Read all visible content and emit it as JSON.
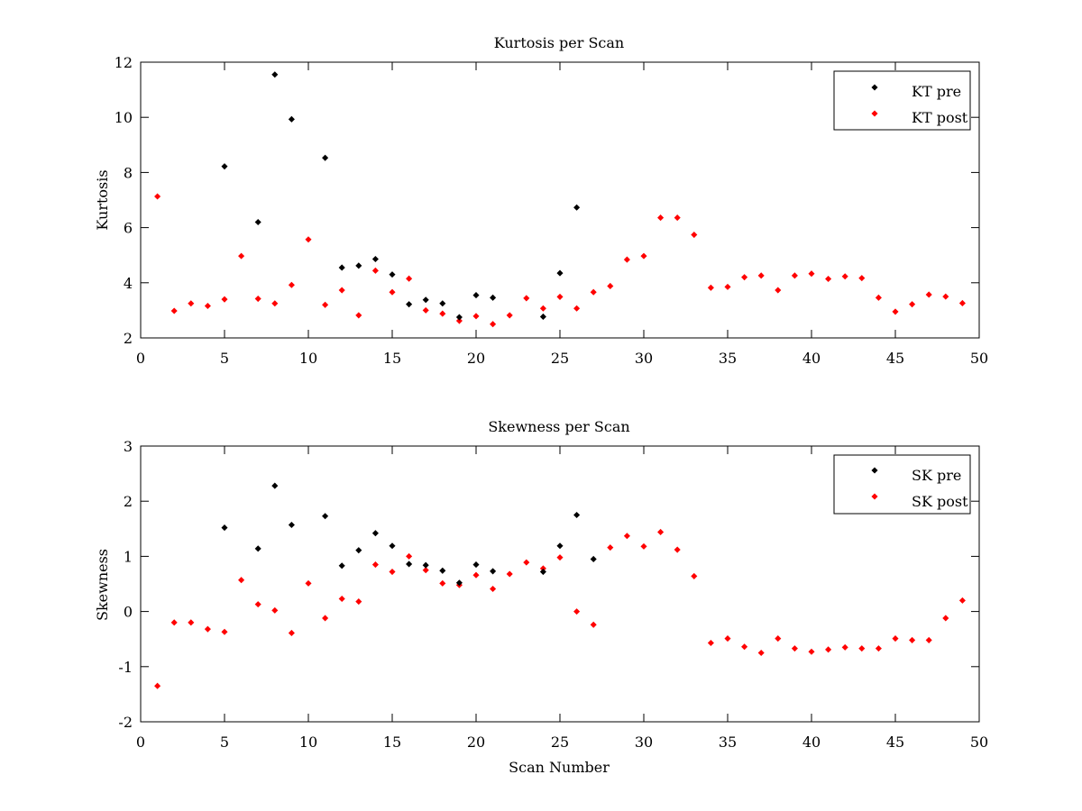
{
  "chart_data": [
    {
      "type": "scatter",
      "title": "Kurtosis per Scan",
      "xlabel": "",
      "ylabel": "Kurtosis",
      "xlim": [
        0,
        50
      ],
      "ylim": [
        2,
        12
      ],
      "xticks": [
        0,
        5,
        10,
        15,
        20,
        25,
        30,
        35,
        40,
        45,
        50
      ],
      "yticks": [
        2,
        4,
        6,
        8,
        10,
        12
      ],
      "grid": false,
      "legend_position": "top-right",
      "series": [
        {
          "name": "KT pre",
          "color": "#000000",
          "x": [
            5,
            7,
            8,
            9,
            11,
            12,
            13,
            14,
            15,
            16,
            17,
            18,
            19,
            20,
            21,
            24,
            25,
            26
          ],
          "y": [
            8.22,
            6.2,
            11.55,
            9.93,
            8.53,
            4.55,
            4.62,
            4.86,
            4.3,
            3.22,
            3.38,
            3.25,
            2.75,
            3.55,
            3.46,
            2.77,
            4.35,
            6.73
          ]
        },
        {
          "name": "KT post",
          "color": "#ff0000",
          "x": [
            1,
            2,
            3,
            4,
            5,
            6,
            7,
            8,
            9,
            10,
            11,
            12,
            13,
            14,
            15,
            16,
            17,
            18,
            19,
            20,
            21,
            22,
            23,
            24,
            25,
            26,
            27,
            28,
            29,
            30,
            31,
            32,
            33,
            34,
            35,
            36,
            37,
            38,
            39,
            40,
            41,
            42,
            43,
            44,
            45,
            46,
            47,
            48,
            49
          ],
          "y": [
            7.13,
            2.98,
            3.25,
            3.16,
            3.4,
            4.97,
            3.42,
            3.25,
            3.92,
            5.57,
            3.2,
            3.73,
            2.82,
            4.44,
            3.66,
            4.15,
            3.0,
            2.88,
            2.62,
            2.79,
            2.5,
            2.82,
            3.44,
            3.07,
            3.49,
            3.07,
            3.66,
            3.88,
            4.84,
            4.97,
            6.36,
            6.36,
            5.74,
            3.82,
            3.85,
            4.2,
            4.26,
            3.73,
            4.26,
            4.33,
            4.14,
            4.23,
            4.17,
            3.46,
            2.95,
            3.22,
            3.57,
            3.5,
            3.26
          ]
        }
      ]
    },
    {
      "type": "scatter",
      "title": "Skewness per Scan",
      "xlabel": "Scan Number",
      "ylabel": "Skewness",
      "xlim": [
        0,
        50
      ],
      "ylim": [
        -2,
        3
      ],
      "xticks": [
        0,
        5,
        10,
        15,
        20,
        25,
        30,
        35,
        40,
        45,
        50
      ],
      "yticks": [
        -2,
        -1,
        0,
        1,
        2,
        3
      ],
      "grid": false,
      "legend_position": "top-right",
      "series": [
        {
          "name": "SK pre",
          "color": "#000000",
          "x": [
            5,
            7,
            8,
            9,
            11,
            12,
            13,
            14,
            15,
            16,
            17,
            18,
            19,
            20,
            21,
            24,
            25,
            26,
            27
          ],
          "y": [
            1.52,
            1.14,
            2.28,
            1.57,
            1.73,
            0.83,
            1.11,
            1.42,
            1.19,
            0.86,
            0.84,
            0.74,
            0.52,
            0.85,
            0.73,
            0.72,
            1.19,
            1.75,
            0.95
          ]
        },
        {
          "name": "SK post",
          "color": "#ff0000",
          "x": [
            1,
            2,
            3,
            4,
            5,
            6,
            7,
            8,
            9,
            10,
            11,
            12,
            13,
            14,
            15,
            16,
            17,
            18,
            19,
            20,
            21,
            22,
            23,
            24,
            25,
            26,
            27,
            28,
            29,
            30,
            31,
            32,
            33,
            34,
            35,
            36,
            37,
            38,
            39,
            40,
            41,
            42,
            43,
            44,
            45,
            46,
            47,
            48,
            49
          ],
          "y": [
            -1.35,
            -0.2,
            -0.2,
            -0.32,
            -0.37,
            0.57,
            0.13,
            0.02,
            -0.39,
            0.51,
            -0.12,
            0.23,
            0.18,
            0.85,
            0.72,
            1.0,
            0.75,
            0.51,
            0.48,
            0.66,
            0.41,
            0.68,
            0.89,
            0.78,
            0.98,
            0.0,
            -0.24,
            1.16,
            1.37,
            1.18,
            1.44,
            1.12,
            0.64,
            -0.57,
            -0.49,
            -0.64,
            -0.75,
            -0.49,
            -0.67,
            -0.73,
            -0.69,
            -0.65,
            -0.67,
            -0.67,
            -0.49,
            -0.52,
            -0.52,
            -0.12,
            0.2
          ]
        }
      ]
    }
  ]
}
